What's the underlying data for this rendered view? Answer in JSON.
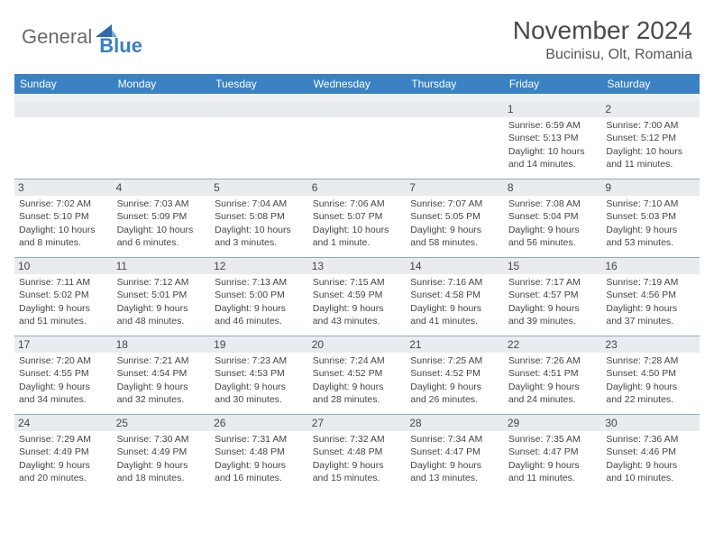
{
  "logo": {
    "part1": "General",
    "part2": "Blue"
  },
  "title": "November 2024",
  "location": "Bucinisu, Olt, Romania",
  "colors": {
    "header_bg": "#3a82c4",
    "header_text": "#ffffff",
    "daynum_bg": "#e9ecef",
    "border": "#8aa8c8",
    "text": "#444444",
    "logo_gray": "#6b6b6b",
    "logo_blue": "#3a7fc4"
  },
  "dayNames": [
    "Sunday",
    "Monday",
    "Tuesday",
    "Wednesday",
    "Thursday",
    "Friday",
    "Saturday"
  ],
  "weeks": [
    [
      {
        "n": "",
        "sunrise": "",
        "sunset": "",
        "daylight": ""
      },
      {
        "n": "",
        "sunrise": "",
        "sunset": "",
        "daylight": ""
      },
      {
        "n": "",
        "sunrise": "",
        "sunset": "",
        "daylight": ""
      },
      {
        "n": "",
        "sunrise": "",
        "sunset": "",
        "daylight": ""
      },
      {
        "n": "",
        "sunrise": "",
        "sunset": "",
        "daylight": ""
      },
      {
        "n": "1",
        "sunrise": "Sunrise: 6:59 AM",
        "sunset": "Sunset: 5:13 PM",
        "daylight": "Daylight: 10 hours and 14 minutes."
      },
      {
        "n": "2",
        "sunrise": "Sunrise: 7:00 AM",
        "sunset": "Sunset: 5:12 PM",
        "daylight": "Daylight: 10 hours and 11 minutes."
      }
    ],
    [
      {
        "n": "3",
        "sunrise": "Sunrise: 7:02 AM",
        "sunset": "Sunset: 5:10 PM",
        "daylight": "Daylight: 10 hours and 8 minutes."
      },
      {
        "n": "4",
        "sunrise": "Sunrise: 7:03 AM",
        "sunset": "Sunset: 5:09 PM",
        "daylight": "Daylight: 10 hours and 6 minutes."
      },
      {
        "n": "5",
        "sunrise": "Sunrise: 7:04 AM",
        "sunset": "Sunset: 5:08 PM",
        "daylight": "Daylight: 10 hours and 3 minutes."
      },
      {
        "n": "6",
        "sunrise": "Sunrise: 7:06 AM",
        "sunset": "Sunset: 5:07 PM",
        "daylight": "Daylight: 10 hours and 1 minute."
      },
      {
        "n": "7",
        "sunrise": "Sunrise: 7:07 AM",
        "sunset": "Sunset: 5:05 PM",
        "daylight": "Daylight: 9 hours and 58 minutes."
      },
      {
        "n": "8",
        "sunrise": "Sunrise: 7:08 AM",
        "sunset": "Sunset: 5:04 PM",
        "daylight": "Daylight: 9 hours and 56 minutes."
      },
      {
        "n": "9",
        "sunrise": "Sunrise: 7:10 AM",
        "sunset": "Sunset: 5:03 PM",
        "daylight": "Daylight: 9 hours and 53 minutes."
      }
    ],
    [
      {
        "n": "10",
        "sunrise": "Sunrise: 7:11 AM",
        "sunset": "Sunset: 5:02 PM",
        "daylight": "Daylight: 9 hours and 51 minutes."
      },
      {
        "n": "11",
        "sunrise": "Sunrise: 7:12 AM",
        "sunset": "Sunset: 5:01 PM",
        "daylight": "Daylight: 9 hours and 48 minutes."
      },
      {
        "n": "12",
        "sunrise": "Sunrise: 7:13 AM",
        "sunset": "Sunset: 5:00 PM",
        "daylight": "Daylight: 9 hours and 46 minutes."
      },
      {
        "n": "13",
        "sunrise": "Sunrise: 7:15 AM",
        "sunset": "Sunset: 4:59 PM",
        "daylight": "Daylight: 9 hours and 43 minutes."
      },
      {
        "n": "14",
        "sunrise": "Sunrise: 7:16 AM",
        "sunset": "Sunset: 4:58 PM",
        "daylight": "Daylight: 9 hours and 41 minutes."
      },
      {
        "n": "15",
        "sunrise": "Sunrise: 7:17 AM",
        "sunset": "Sunset: 4:57 PM",
        "daylight": "Daylight: 9 hours and 39 minutes."
      },
      {
        "n": "16",
        "sunrise": "Sunrise: 7:19 AM",
        "sunset": "Sunset: 4:56 PM",
        "daylight": "Daylight: 9 hours and 37 minutes."
      }
    ],
    [
      {
        "n": "17",
        "sunrise": "Sunrise: 7:20 AM",
        "sunset": "Sunset: 4:55 PM",
        "daylight": "Daylight: 9 hours and 34 minutes."
      },
      {
        "n": "18",
        "sunrise": "Sunrise: 7:21 AM",
        "sunset": "Sunset: 4:54 PM",
        "daylight": "Daylight: 9 hours and 32 minutes."
      },
      {
        "n": "19",
        "sunrise": "Sunrise: 7:23 AM",
        "sunset": "Sunset: 4:53 PM",
        "daylight": "Daylight: 9 hours and 30 minutes."
      },
      {
        "n": "20",
        "sunrise": "Sunrise: 7:24 AM",
        "sunset": "Sunset: 4:52 PM",
        "daylight": "Daylight: 9 hours and 28 minutes."
      },
      {
        "n": "21",
        "sunrise": "Sunrise: 7:25 AM",
        "sunset": "Sunset: 4:52 PM",
        "daylight": "Daylight: 9 hours and 26 minutes."
      },
      {
        "n": "22",
        "sunrise": "Sunrise: 7:26 AM",
        "sunset": "Sunset: 4:51 PM",
        "daylight": "Daylight: 9 hours and 24 minutes."
      },
      {
        "n": "23",
        "sunrise": "Sunrise: 7:28 AM",
        "sunset": "Sunset: 4:50 PM",
        "daylight": "Daylight: 9 hours and 22 minutes."
      }
    ],
    [
      {
        "n": "24",
        "sunrise": "Sunrise: 7:29 AM",
        "sunset": "Sunset: 4:49 PM",
        "daylight": "Daylight: 9 hours and 20 minutes."
      },
      {
        "n": "25",
        "sunrise": "Sunrise: 7:30 AM",
        "sunset": "Sunset: 4:49 PM",
        "daylight": "Daylight: 9 hours and 18 minutes."
      },
      {
        "n": "26",
        "sunrise": "Sunrise: 7:31 AM",
        "sunset": "Sunset: 4:48 PM",
        "daylight": "Daylight: 9 hours and 16 minutes."
      },
      {
        "n": "27",
        "sunrise": "Sunrise: 7:32 AM",
        "sunset": "Sunset: 4:48 PM",
        "daylight": "Daylight: 9 hours and 15 minutes."
      },
      {
        "n": "28",
        "sunrise": "Sunrise: 7:34 AM",
        "sunset": "Sunset: 4:47 PM",
        "daylight": "Daylight: 9 hours and 13 minutes."
      },
      {
        "n": "29",
        "sunrise": "Sunrise: 7:35 AM",
        "sunset": "Sunset: 4:47 PM",
        "daylight": "Daylight: 9 hours and 11 minutes."
      },
      {
        "n": "30",
        "sunrise": "Sunrise: 7:36 AM",
        "sunset": "Sunset: 4:46 PM",
        "daylight": "Daylight: 9 hours and 10 minutes."
      }
    ]
  ]
}
